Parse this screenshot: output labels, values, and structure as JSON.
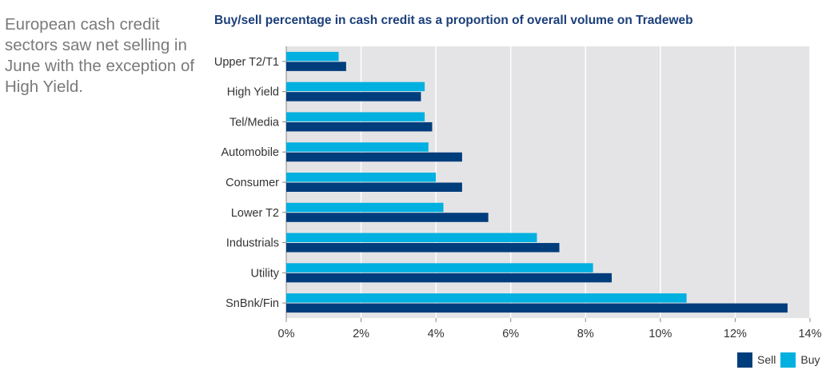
{
  "side_text": "European cash credit sectors saw net selling in June with the exception of High Yield.",
  "chart_data": {
    "type": "bar",
    "orientation": "horizontal",
    "title": "Buy/sell percentage in cash credit as a proportion of overall volume on Tradeweb",
    "categories": [
      "Upper T2/T1",
      "High Yield",
      "Tel/Media",
      "Automobile",
      "Consumer",
      "Lower T2",
      "Industrials",
      "Utility",
      "SnBnk/Fin"
    ],
    "series": [
      {
        "name": "Buy",
        "color": "#00b0e0",
        "values": [
          1.4,
          3.7,
          3.7,
          3.8,
          4.0,
          4.2,
          6.7,
          8.2,
          10.7
        ]
      },
      {
        "name": "Sell",
        "color": "#003d7c",
        "values": [
          1.6,
          3.6,
          3.9,
          4.7,
          4.7,
          5.4,
          7.3,
          8.7,
          13.4
        ]
      }
    ],
    "xlim": [
      0,
      14
    ],
    "x_ticks": [
      "0%",
      "2%",
      "4%",
      "6%",
      "8%",
      "10%",
      "12%",
      "14%"
    ],
    "grid": true,
    "legend": {
      "placement": "bottom-right",
      "items": [
        {
          "label": "Sell",
          "color": "#003d7c"
        },
        {
          "label": "Buy",
          "color": "#00b0e0"
        }
      ]
    }
  }
}
